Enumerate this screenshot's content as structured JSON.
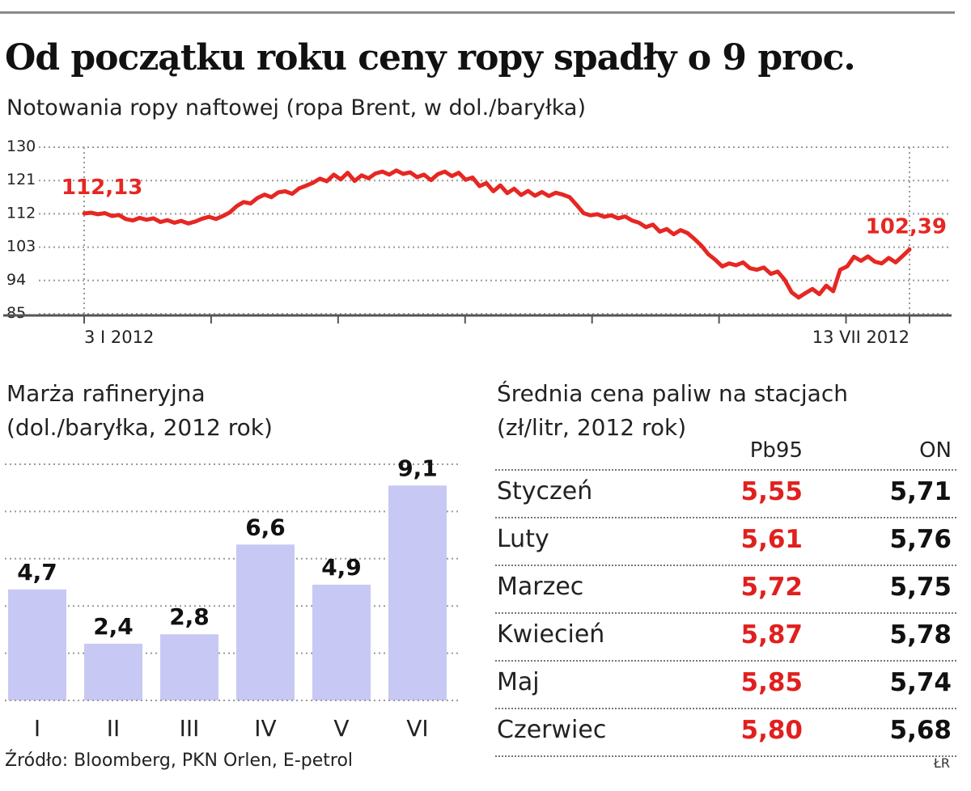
{
  "title": "Od początku roku ceny ropy spadły o 9 proc.",
  "subtitle": "Notowania ropy naftowej (ropa Brent, w dol./baryłka)",
  "chart_data": [
    {
      "type": "line",
      "ylim": [
        85,
        130
      ],
      "y_ticks": [
        "130",
        "121",
        "112",
        "103",
        "94",
        "85"
      ],
      "x_labels": [
        "3 I 2012",
        "13 VII 2012"
      ],
      "start_label": "112,13",
      "end_label": "102,39",
      "line_color": "#e62722",
      "series": [
        {
          "values": [
            112.1,
            112.3,
            111.9,
            112.2,
            111.4,
            111.7,
            110.6,
            110.2,
            110.9,
            110.4,
            110.8,
            109.8,
            110.3,
            109.6,
            110.1,
            109.4,
            109.9,
            110.7,
            111.2,
            110.6,
            111.4,
            112.4,
            114.1,
            115.2,
            114.8,
            116.3,
            117.2,
            116.5,
            117.8,
            118.1,
            117.4,
            118.9,
            119.6,
            120.4,
            121.5,
            120.8,
            122.6,
            121.3,
            123.1,
            120.9,
            122.4,
            121.6,
            122.9,
            123.4,
            122.6,
            123.7,
            122.8,
            123.2,
            121.9,
            122.6,
            121.1,
            122.7,
            123.4,
            122.2,
            123.1,
            121.2,
            121.8,
            119.5,
            120.3,
            118.1,
            119.7,
            117.6,
            118.8,
            117.1,
            118.2,
            116.9,
            117.9,
            116.8,
            117.7,
            117.2,
            116.5,
            114.4,
            112.2,
            111.6,
            111.9,
            111.2,
            111.6,
            110.8,
            111.3,
            110.2,
            109.6,
            108.4,
            109.1,
            107.2,
            107.9,
            106.5,
            107.6,
            106.8,
            105.2,
            103.4,
            101.1,
            99.6,
            97.8,
            98.6,
            98.1,
            98.9,
            97.3,
            96.9,
            97.5,
            95.8,
            96.4,
            94.2,
            90.8,
            89.4,
            90.6,
            91.7,
            90.3,
            92.6,
            91.1,
            96.9,
            97.8,
            100.4,
            99.3,
            100.5,
            99.1,
            98.6,
            100.1,
            98.9,
            100.6,
            102.39
          ]
        }
      ]
    },
    {
      "type": "bar",
      "title": "Marża rafineryjna",
      "subtitle": "(dol./baryłka, 2012 rok)",
      "categories": [
        "I",
        "II",
        "III",
        "IV",
        "V",
        "VI"
      ],
      "values": [
        4.7,
        2.4,
        2.8,
        6.6,
        4.9,
        9.1
      ],
      "value_labels": [
        "4,7",
        "2,4",
        "2,8",
        "6,6",
        "4,9",
        "9,1"
      ],
      "ylim": [
        0,
        10
      ],
      "bar_color": "#c8c8f4"
    },
    {
      "type": "table",
      "title": "Średnia cena paliw na stacjach",
      "subtitle": "(zł/litr, 2012 rok)",
      "columns": [
        "Pb95",
        "ON"
      ],
      "rows": [
        {
          "month": "Styczeń",
          "pb95": "5,55",
          "on": "5,71"
        },
        {
          "month": "Luty",
          "pb95": "5,61",
          "on": "5,76"
        },
        {
          "month": "Marzec",
          "pb95": "5,72",
          "on": "5,75"
        },
        {
          "month": "Kwiecień",
          "pb95": "5,87",
          "on": "5,78"
        },
        {
          "month": "Maj",
          "pb95": "5,85",
          "on": "5,74"
        },
        {
          "month": "Czerwiec",
          "pb95": "5,80",
          "on": "5,68"
        }
      ]
    }
  ],
  "source": "Źródło: Bloomberg, PKN Orlen, E-petrol",
  "signature": "ŁR"
}
